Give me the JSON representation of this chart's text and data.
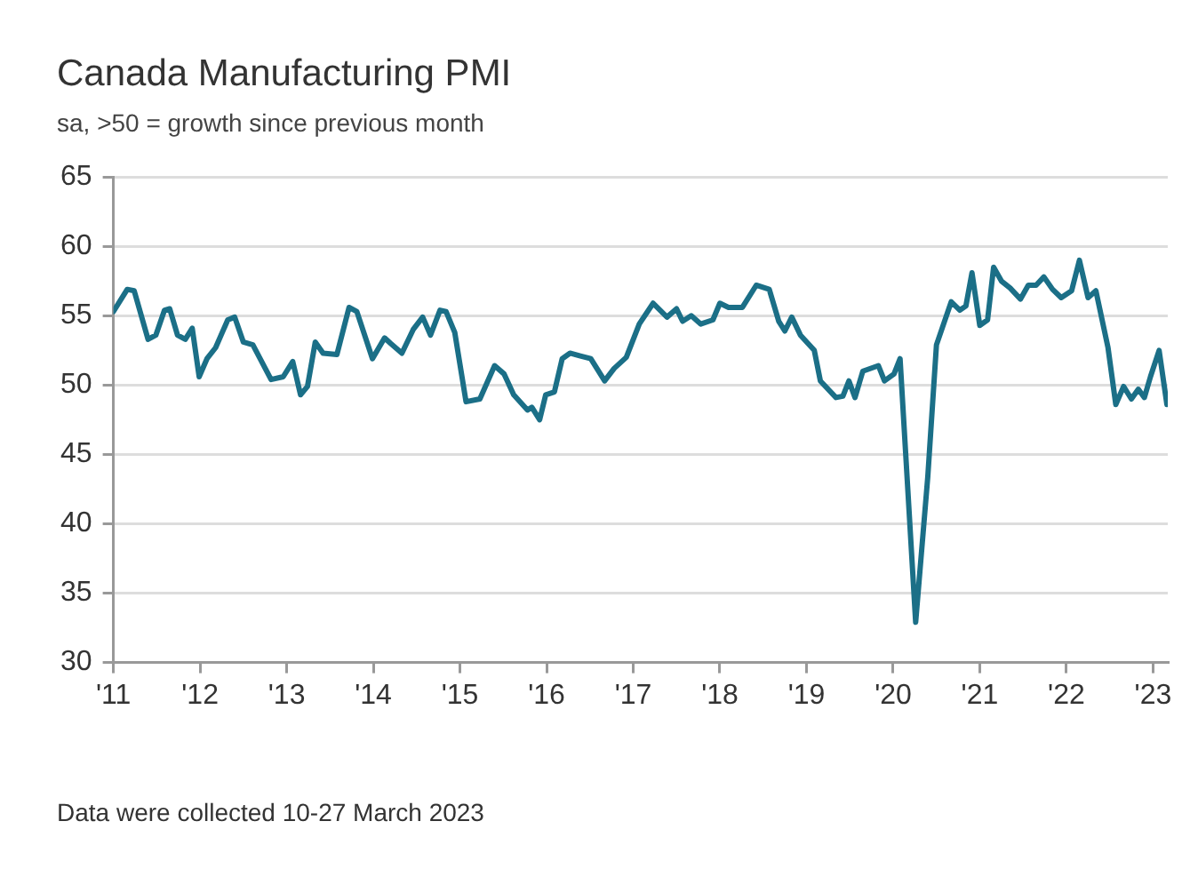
{
  "chart_data": {
    "type": "line",
    "title": "Canada Manufacturing PMI",
    "subtitle": "sa, >50 = growth since previous month",
    "x": [
      2011.0,
      2011.16,
      2011.24,
      2011.4,
      2011.49,
      2011.59,
      2011.65,
      2011.74,
      2011.83,
      2011.91,
      2011.99,
      2012.08,
      2012.18,
      2012.32,
      2012.4,
      2012.5,
      2012.61,
      2012.82,
      2012.96,
      2013.07,
      2013.16,
      2013.24,
      2013.33,
      2013.42,
      2013.58,
      2013.72,
      2013.81,
      2013.99,
      2014.13,
      2014.2,
      2014.33,
      2014.46,
      2014.57,
      2014.66,
      2014.77,
      2014.84,
      2014.94,
      2015.07,
      2015.23,
      2015.4,
      2015.51,
      2015.62,
      2015.78,
      2015.83,
      2015.92,
      2015.99,
      2016.09,
      2016.18,
      2016.27,
      2016.39,
      2016.51,
      2016.67,
      2016.78,
      2016.92,
      2017.07,
      2017.23,
      2017.39,
      2017.5,
      2017.57,
      2017.67,
      2017.78,
      2017.92,
      2018.0,
      2018.1,
      2018.26,
      2018.42,
      2018.57,
      2018.68,
      2018.75,
      2018.83,
      2018.93,
      2019.09,
      2019.16,
      2019.34,
      2019.42,
      2019.49,
      2019.56,
      2019.65,
      2019.83,
      2019.9,
      2020.01,
      2020.08,
      2020.26,
      2020.4,
      2020.5,
      2020.67,
      2020.77,
      2020.84,
      2020.91,
      2021.0,
      2021.09,
      2021.16,
      2021.25,
      2021.35,
      2021.47,
      2021.56,
      2021.65,
      2021.74,
      2021.84,
      2021.94,
      2022.06,
      2022.15,
      2022.25,
      2022.34,
      2022.48,
      2022.57,
      2022.66,
      2022.75,
      2022.83,
      2022.9,
      2022.97,
      2023.07,
      2023.16
    ],
    "series": [
      {
        "color": "#1b6f87",
        "values": [
          55.3,
          56.9,
          56.8,
          53.3,
          53.6,
          55.4,
          55.5,
          53.6,
          53.3,
          54.1,
          50.6,
          51.9,
          52.7,
          54.7,
          54.9,
          53.1,
          52.9,
          50.4,
          50.6,
          51.7,
          49.3,
          49.9,
          53.1,
          52.3,
          52.2,
          55.6,
          55.3,
          51.9,
          53.4,
          53.0,
          52.3,
          54.0,
          54.9,
          53.6,
          55.4,
          55.3,
          53.8,
          48.8,
          49.0,
          51.4,
          50.8,
          49.3,
          48.2,
          48.4,
          47.5,
          49.3,
          49.5,
          51.9,
          52.3,
          52.1,
          51.9,
          50.3,
          51.2,
          52.0,
          54.4,
          55.9,
          54.9,
          55.5,
          54.6,
          55.0,
          54.4,
          54.7,
          55.9,
          55.6,
          55.6,
          57.2,
          56.9,
          54.6,
          53.9,
          54.9,
          53.6,
          52.5,
          50.3,
          49.1,
          49.2,
          50.3,
          49.1,
          51.0,
          51.4,
          50.3,
          50.8,
          51.9,
          32.9,
          43.4,
          52.9,
          56.0,
          55.4,
          55.7,
          58.1,
          54.3,
          54.7,
          58.5,
          57.5,
          57.0,
          56.2,
          57.2,
          57.2,
          57.8,
          56.9,
          56.3,
          56.8,
          59.0,
          56.3,
          56.8,
          52.7,
          48.6,
          49.9,
          49.0,
          49.7,
          49.1,
          50.6,
          52.5,
          48.6
        ]
      }
    ],
    "xlim": [
      2011,
      2023.17
    ],
    "xticks": [
      {
        "value": 2011,
        "label": "'11"
      },
      {
        "value": 2012,
        "label": "'12"
      },
      {
        "value": 2013,
        "label": "'13"
      },
      {
        "value": 2014,
        "label": "'14"
      },
      {
        "value": 2015,
        "label": "'15"
      },
      {
        "value": 2016,
        "label": "'16"
      },
      {
        "value": 2017,
        "label": "'17"
      },
      {
        "value": 2018,
        "label": "'18"
      },
      {
        "value": 2019,
        "label": "'19"
      },
      {
        "value": 2020,
        "label": "'20"
      },
      {
        "value": 2021,
        "label": "'21"
      },
      {
        "value": 2022,
        "label": "'22"
      },
      {
        "value": 2023,
        "label": "'23"
      }
    ],
    "ylim": [
      30,
      65
    ],
    "yticks": [
      30,
      35,
      40,
      45,
      50,
      55,
      60,
      65
    ],
    "grid": "y",
    "legend": false,
    "marker": "none",
    "line_style": "solid",
    "annotations": [
      "Data were collected 10-27 March 2023"
    ]
  }
}
